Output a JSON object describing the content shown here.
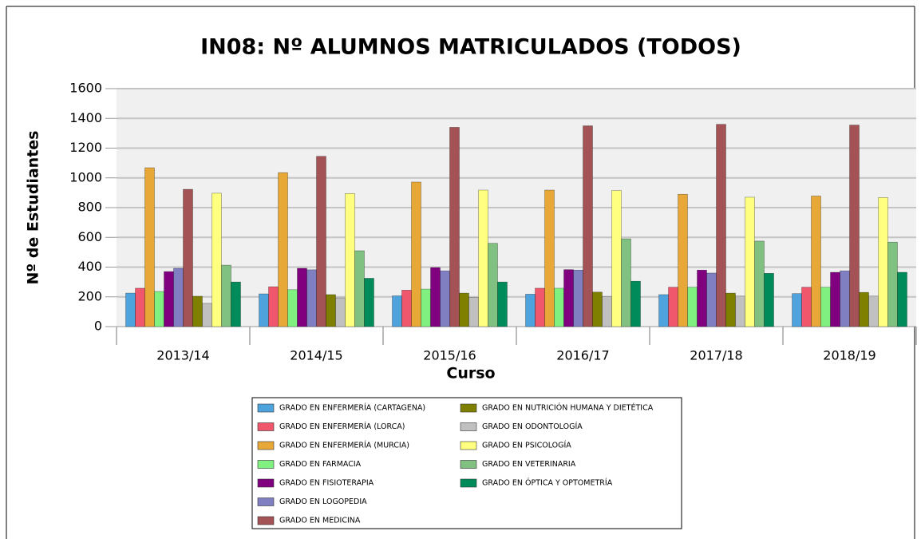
{
  "chart_data": {
    "type": "bar",
    "title": "IN08: Nº ALUMNOS MATRICULADOS (TODOS)",
    "x_label": "Curso",
    "y_label": "Nº de Estudiantes",
    "categories": [
      "2013/14",
      "2014/15",
      "2015/16",
      "2016/17",
      "2017/18",
      "2018/19"
    ],
    "ylim": [
      0,
      1600
    ],
    "yticks": [
      0,
      200,
      400,
      600,
      800,
      1000,
      1200,
      1400,
      1600
    ],
    "grid": true,
    "series": [
      {
        "name": "GRADO EN ENFERMERÍA  (CARTAGENA)",
        "color": "#4fa3dd",
        "values": [
          225,
          220,
          207,
          218,
          215,
          222
        ]
      },
      {
        "name": "GRADO EN ENFERMERÍA (LORCA)",
        "color": "#f0566c",
        "values": [
          258,
          268,
          245,
          258,
          265,
          265
        ]
      },
      {
        "name": "GRADO EN ENFERMERÍA (MURCIA)",
        "color": "#e8a838",
        "values": [
          1068,
          1035,
          972,
          918,
          890,
          878
        ]
      },
      {
        "name": "GRADO EN FARMACIA",
        "color": "#80f080",
        "values": [
          236,
          248,
          252,
          258,
          265,
          265
        ]
      },
      {
        "name": "GRADO EN FISIOTERAPIA",
        "color": "#800080",
        "values": [
          370,
          392,
          397,
          383,
          380,
          365
        ]
      },
      {
        "name": "GRADO EN LOGOPEDIA",
        "color": "#7f7fc2",
        "values": [
          392,
          382,
          375,
          380,
          360,
          375
        ]
      },
      {
        "name": "GRADO EN MEDICINA",
        "color": "#a35355",
        "values": [
          923,
          1145,
          1340,
          1350,
          1360,
          1355
        ]
      },
      {
        "name": "GRADO EN NUTRICIÓN HUMANA Y DIETÉTICA",
        "color": "#808000",
        "values": [
          204,
          215,
          225,
          232,
          225,
          230
        ]
      },
      {
        "name": "GRADO EN ODONTOLOGÍA",
        "color": "#c0c0c0",
        "values": [
          156,
          193,
          195,
          203,
          205,
          205
        ]
      },
      {
        "name": "GRADO EN PSICOLOGÍA",
        "color": "#ffff80",
        "values": [
          897,
          895,
          918,
          915,
          870,
          868
        ]
      },
      {
        "name": "GRADO EN VETERINARIA",
        "color": "#80c080",
        "values": [
          413,
          510,
          560,
          590,
          575,
          568
        ]
      },
      {
        "name": "GRADO EN ÓPTICA Y OPTOMETRÍA",
        "color": "#008c5a",
        "values": [
          300,
          325,
          300,
          305,
          358,
          365
        ]
      }
    ]
  }
}
